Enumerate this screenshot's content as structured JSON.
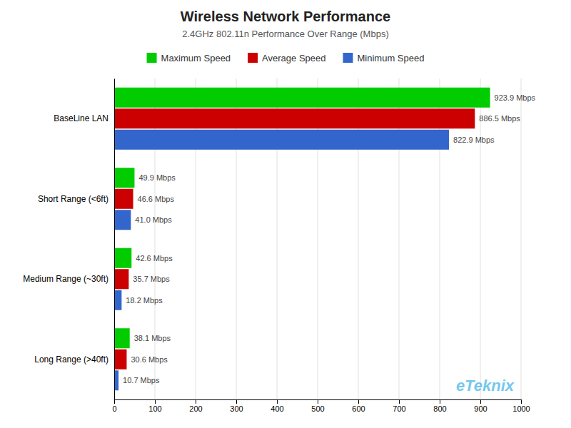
{
  "chart_data": {
    "type": "bar",
    "orientation": "horizontal",
    "title": "Wireless Network Performance",
    "subtitle": "2.4GHz 802.11n Performance Over Range (Mbps)",
    "categories": [
      "BaseLine LAN",
      "Short Range (<6ft)",
      "Medium Range (~30ft)",
      "Long Range (>40ft)"
    ],
    "series": [
      {
        "name": "Maximum Speed",
        "color": "#00CC00",
        "values": [
          923.9,
          49.9,
          42.6,
          38.1
        ],
        "value_labels": [
          "923.9 Mbps",
          "49.9 Mbps",
          "42.6 Mbps",
          "38.1 Mbps"
        ]
      },
      {
        "name": "Average Speed",
        "color": "#CC0000",
        "values": [
          886.5,
          46.6,
          35.7,
          30.6
        ],
        "value_labels": [
          "886.5 Mbps",
          "46.6 Mbps",
          "35.7 Mbps",
          "30.6 Mbps"
        ]
      },
      {
        "name": "Minimum Speed",
        "color": "#3366CC",
        "values": [
          822.9,
          41.0,
          18.2,
          10.7
        ],
        "value_labels": [
          "822.9 Mbps",
          "41.0 Mbps",
          "18.2 Mbps",
          "10.7 Mbps"
        ]
      }
    ],
    "xlim": [
      0,
      1000
    ],
    "xticks": [
      0,
      100,
      200,
      300,
      400,
      500,
      600,
      700,
      800,
      900,
      1000
    ],
    "grid": true,
    "legend": "top",
    "data_labels": true,
    "annotations": [
      "eTeknix"
    ]
  }
}
